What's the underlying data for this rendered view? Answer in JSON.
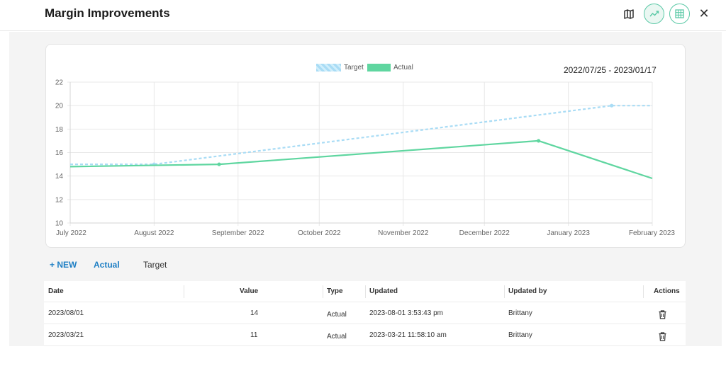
{
  "header": {
    "title": "Margin Improvements",
    "icons": [
      "map-icon",
      "trend-chart-icon",
      "table-icon",
      "close-icon"
    ],
    "accent_color": "#5cc9a7"
  },
  "chart": {
    "date_range": "2022/07/25 - 2023/01/17",
    "legend": [
      {
        "label": "Target",
        "color": "#a9dcf5"
      },
      {
        "label": "Actual",
        "color": "#5fd6a0"
      }
    ]
  },
  "chart_data": {
    "type": "line",
    "title": "",
    "xlabel": "",
    "ylabel": "",
    "x_ticks": [
      "July 2022",
      "August 2022",
      "September 2022",
      "October 2022",
      "November 2022",
      "December 2022",
      "January 2023",
      "February 2023"
    ],
    "y_ticks": [
      "10",
      "12",
      "14",
      "16",
      "18",
      "20",
      "22"
    ],
    "ylim": [
      10,
      22
    ],
    "grid": true,
    "legend_position": "top-center",
    "series": [
      {
        "name": "Target",
        "style": "dashed",
        "color": "#a9dcf5",
        "points": [
          {
            "x": "2022-07-01",
            "y": 15.0
          },
          {
            "x": "2022-08-01",
            "y": 15.0
          },
          {
            "x": "2023-01-17",
            "y": 20.0
          },
          {
            "x": "2023-02-01",
            "y": 20.0
          }
        ]
      },
      {
        "name": "Actual",
        "style": "solid",
        "color": "#5fd6a0",
        "points": [
          {
            "x": "2022-07-01",
            "y": 14.8
          },
          {
            "x": "2022-08-25",
            "y": 15.0
          },
          {
            "x": "2022-12-21",
            "y": 17.0
          },
          {
            "x": "2023-02-01",
            "y": 13.8
          }
        ]
      }
    ]
  },
  "tabs": {
    "new": "+ NEW",
    "actual": "Actual",
    "target": "Target"
  },
  "table": {
    "columns": [
      "Date",
      "Value",
      "Type",
      "Updated",
      "Updated by",
      "Actions"
    ],
    "rows": [
      {
        "date": "2023/08/01",
        "value": "14",
        "type": "Actual",
        "updated": "2023-08-01 3:53:43 pm",
        "updated_by": "Brittany"
      },
      {
        "date": "2023/03/21",
        "value": "11",
        "type": "Actual",
        "updated": "2023-03-21 11:58:10 am",
        "updated_by": "Brittany"
      }
    ]
  }
}
